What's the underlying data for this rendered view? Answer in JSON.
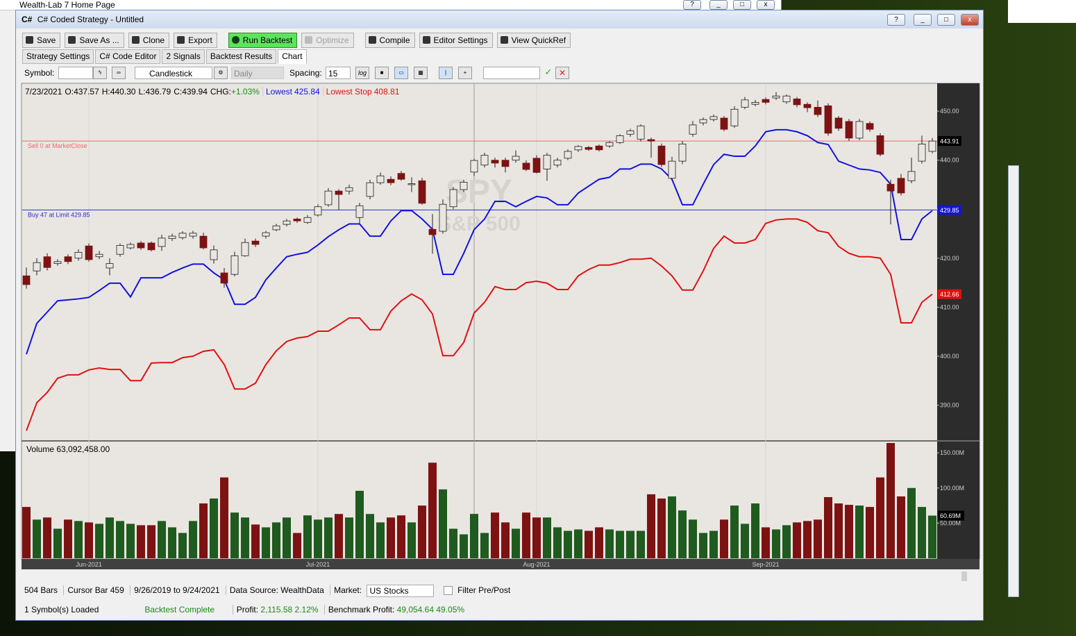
{
  "window": {
    "parent_title": "Wealth-Lab 7 Home Page",
    "icon": "C#",
    "title": "C# Coded Strategy - Untitled"
  },
  "toolbar": {
    "buttons": [
      "Save",
      "Save As ...",
      "Clone",
      "Export",
      "Run Backtest",
      "Optimize",
      "Compile",
      "Editor Settings",
      "View QuickRef"
    ]
  },
  "tabs": [
    "Strategy Settings",
    "C# Code Editor",
    "2 Signals",
    "Backtest Results",
    "Chart"
  ],
  "chart_toolbar": {
    "symbol_label": "Symbol:",
    "chart_style": "Candlestick",
    "scale": "Daily",
    "spacing_label": "Spacing:",
    "spacing": 15,
    "log_label": "log"
  },
  "readout": {
    "date": "7/23/2021",
    "items": [
      {
        "label": "O:",
        "value": "437.57"
      },
      {
        "label": "H:",
        "value": "440.30"
      },
      {
        "label": "L:",
        "value": "436.79"
      },
      {
        "label": "C:",
        "value": "439.94"
      },
      {
        "label": "CHG:",
        "value": "+1.03%"
      }
    ]
  },
  "chart_data": {
    "type": "candlestick",
    "watermark": {
      "symbol": "SPY",
      "name": "S&P 500"
    },
    "categories": [
      null,
      null,
      null,
      null,
      null,
      null,
      "Jun-2021",
      null,
      null,
      null,
      null,
      null,
      null,
      null,
      null,
      null,
      null,
      null,
      null,
      null,
      null,
      null,
      null,
      null,
      null,
      null,
      null,
      null,
      "Jul-2021",
      null,
      null,
      null,
      null,
      null,
      null,
      null,
      null,
      null,
      null,
      null,
      null,
      null,
      null,
      null,
      null,
      null,
      null,
      null,
      null,
      "Aug-2021",
      null,
      null,
      null,
      null,
      null,
      null,
      null,
      null,
      null,
      null,
      null,
      null,
      null,
      null,
      null,
      null,
      null,
      null,
      null,
      null,
      null,
      "Sep-2021",
      null,
      null,
      null,
      null,
      null,
      null,
      null,
      null,
      null,
      null,
      null,
      null,
      null,
      null,
      null,
      null
    ],
    "open": [
      416.4,
      417.4,
      420.3,
      418.9,
      420.3,
      420,
      422.5,
      420.3,
      418,
      420.8,
      422.1,
      423.1,
      423.1,
      422.4,
      424,
      424.2,
      424.5,
      424.5,
      419.7,
      417,
      416.7,
      420.5,
      423.5,
      424.5,
      425.8,
      426.9,
      428,
      427.3,
      428.8,
      430.9,
      433.7,
      433.7,
      428.3,
      432.6,
      435.4,
      436.1,
      437.3,
      435,
      435.8,
      425.9,
      425.5,
      430.5,
      434,
      437.57,
      439,
      440,
      440,
      440,
      439.4,
      440.4,
      438.2,
      439,
      440.4,
      442.1,
      442.6,
      442.9,
      442.9,
      443.6,
      445.3,
      444.3,
      444.2,
      442.9,
      436.3,
      439.8,
      445.3,
      447.6,
      448.3,
      448.6,
      447,
      450.8,
      451.4,
      452.4,
      452.7,
      451.9,
      452.5,
      451.4,
      450.8,
      451.1,
      448.6,
      447.9,
      444.5,
      447.5,
      445,
      435.1,
      436.3,
      435.8,
      439.8,
      441.8
    ],
    "high": [
      418.1,
      420,
      421,
      419.8,
      420.8,
      421.8,
      423,
      421.5,
      420,
      423,
      423.2,
      423.5,
      423.4,
      424.8,
      425,
      425.5,
      425.6,
      425.2,
      422.6,
      418,
      421.3,
      424,
      424,
      425.6,
      427,
      428,
      428.3,
      428.8,
      431,
      434.3,
      434.1,
      435,
      431.3,
      436,
      437.5,
      436.7,
      437.8,
      436.5,
      436.4,
      429,
      432,
      434.5,
      436,
      440.3,
      441.5,
      440.5,
      440.5,
      442,
      440,
      441,
      441.5,
      440.5,
      442.2,
      443.1,
      442.9,
      443.2,
      443.9,
      445.3,
      446.4,
      447.3,
      444.6,
      443.4,
      440.7,
      443.9,
      448,
      448.7,
      449.3,
      449,
      451,
      452.9,
      452.3,
      452.8,
      453.9,
      453.4,
      452.9,
      451.8,
      452.2,
      451.6,
      449,
      448.4,
      448.4,
      447.9,
      445.5,
      436,
      437.2,
      440.5,
      445,
      444.5
    ],
    "low": [
      413.8,
      416.5,
      417.5,
      418.5,
      418.8,
      419.5,
      419.3,
      419.8,
      416.5,
      420.3,
      421.8,
      421.7,
      421.4,
      421.5,
      423.5,
      423.8,
      424,
      421.8,
      418.9,
      414,
      416.3,
      420.3,
      422.3,
      424,
      425.5,
      426.5,
      427.2,
      427,
      428.5,
      430.5,
      429.8,
      433,
      427,
      432,
      435,
      434.9,
      435.8,
      433.5,
      430.9,
      420.9,
      425,
      430,
      433.5,
      436.79,
      438.5,
      438.5,
      437.5,
      439.5,
      437.8,
      437.3,
      435.8,
      438.5,
      440,
      441.7,
      441.9,
      441.8,
      442.5,
      443.3,
      444.8,
      443.8,
      440.5,
      438.6,
      435.8,
      439.2,
      444.8,
      447.1,
      447.9,
      445.9,
      446.6,
      450.4,
      451,
      451.4,
      452.3,
      451.5,
      450.8,
      449.8,
      448.8,
      445,
      446,
      443.9,
      444.1,
      445.8,
      440.8,
      426.9,
      432.8,
      435.3,
      439.3,
      441.4
    ],
    "close": [
      414.6,
      419.1,
      418.1,
      419.3,
      419.3,
      421.2,
      419.7,
      420.8,
      418.9,
      422.6,
      422.8,
      422.1,
      421.7,
      424.1,
      424.5,
      425.1,
      425.1,
      422.1,
      421.7,
      414.9,
      420.5,
      423.2,
      422.8,
      425.2,
      426.6,
      427.6,
      427.6,
      428.3,
      430.5,
      433.7,
      433,
      434.4,
      430.7,
      435.4,
      436.8,
      435.4,
      436.1,
      435.2,
      431.2,
      424.8,
      431,
      434,
      435.5,
      439.94,
      441,
      439.4,
      438.7,
      440.8,
      438.1,
      437.5,
      441,
      440,
      441.8,
      442.8,
      442.2,
      442.1,
      443.6,
      445,
      446,
      447,
      443.9,
      439.1,
      439.8,
      443.3,
      447.2,
      448.3,
      448.9,
      446.3,
      450.4,
      452.3,
      451.8,
      451.8,
      453.1,
      453.1,
      451.3,
      450.7,
      449.3,
      445.5,
      446.5,
      444.5,
      447.9,
      446.3,
      441.2,
      433.7,
      433.3,
      437.7,
      443.3,
      443.9
    ],
    "up_color": "#e9e6e2",
    "down_color": "#7d1212",
    "outline_color": "#1e1e1e",
    "ylim": [
      383,
      455.4
    ],
    "yticks": [
      {
        "value": 390,
        "label": "390.00"
      },
      {
        "value": 400,
        "label": "400.00"
      },
      {
        "value": 410,
        "label": "410.00"
      },
      {
        "value": 420,
        "label": "420.00"
      },
      {
        "value": 430,
        "label": "430.00"
      },
      {
        "value": 440,
        "label": "440.00"
      },
      {
        "value": 450,
        "label": "450.00"
      }
    ],
    "cursor_index": 43,
    "series": [
      {
        "name": "Lowest",
        "color": "#1111dd",
        "readout": "425.84",
        "axis_label": false,
        "values": [
          400.4,
          406.7,
          409,
          411.3,
          411.5,
          411.7,
          412,
          413.4,
          414.9,
          414.9,
          412.1,
          416,
          416,
          416,
          417.1,
          418,
          418.8,
          418.8,
          417,
          415.6,
          410.6,
          410.6,
          412,
          415.6,
          418,
          420.3,
          420.8,
          421.2,
          422.7,
          424.4,
          425.8,
          427,
          427,
          424.5,
          424.5,
          427.6,
          429.7,
          429.7,
          428,
          425.9,
          416.7,
          416.7,
          421,
          425.84,
          428,
          431.6,
          431.6,
          430.5,
          431.6,
          432.6,
          432.3,
          430.9,
          430.9,
          433.3,
          434.7,
          436.1,
          436.5,
          438.2,
          438.2,
          439.2,
          439.2,
          438.2,
          436.1,
          430.9,
          430.9,
          435.1,
          439.1,
          441.2,
          440.8,
          440.8,
          442.9,
          445.8,
          446.2,
          446.2,
          445.8,
          445,
          443.6,
          443.2,
          439.8,
          439,
          438.2,
          438,
          437.5,
          435.1,
          423.8,
          423.8,
          428,
          429.7
        ]
      },
      {
        "name": "Lowest Stop",
        "color": "#e01010",
        "readout": "408.81",
        "axis_label": true,
        "values": [
          384.8,
          390.5,
          392.6,
          395.5,
          396.2,
          396.2,
          397.2,
          397.6,
          397.3,
          397.3,
          395,
          395,
          398.6,
          398.7,
          398.7,
          399.7,
          400,
          401,
          401.3,
          398.3,
          393.3,
          393.3,
          394.5,
          398.3,
          401.1,
          403,
          403.7,
          404,
          405.1,
          405.1,
          406.4,
          407.8,
          407.8,
          405.4,
          405.4,
          409.2,
          411.3,
          412.7,
          411.5,
          408.6,
          400.1,
          400.1,
          402.8,
          408.81,
          411,
          414.2,
          413.6,
          413.6,
          415,
          415.3,
          414.9,
          413.6,
          413.6,
          416.4,
          417.7,
          418.6,
          418.6,
          419.1,
          419.8,
          419.8,
          420,
          418.4,
          416.4,
          413.5,
          413.5,
          417.4,
          422,
          424.5,
          423.1,
          423.1,
          423.8,
          427.1,
          427.8,
          428,
          428,
          427.3,
          425.6,
          425.2,
          422.4,
          421,
          420.3,
          420.3,
          420,
          416.7,
          406.8,
          406.8,
          411,
          412.66
        ]
      }
    ],
    "orders": [
      {
        "label": "Sell 0 at MarketClose",
        "value": 443.91,
        "color": "#e86a6a",
        "box_color": "#000000"
      },
      {
        "label": "Buy 47 at Limit 429.85",
        "value": 429.85,
        "color": "#2a2ae0",
        "box_color": "#1515d0"
      }
    ],
    "volume": {
      "label": "Volume",
      "readout": "63,092,458.00",
      "up_color": "#1f5a1f",
      "down_color": "#7d1212",
      "ylim": [
        0,
        166
      ],
      "yticks": [
        {
          "value": 50,
          "label": "50.00M"
        },
        {
          "value": 100,
          "label": "100.00M"
        },
        {
          "value": 150,
          "label": "150.00M"
        }
      ],
      "values": [
        73,
        55,
        58,
        42,
        55,
        53,
        51,
        49,
        58,
        53,
        49,
        47,
        47,
        53,
        44,
        36,
        53,
        78,
        85,
        115,
        65,
        58,
        48,
        44,
        51,
        58,
        36,
        61,
        55,
        58,
        63,
        58,
        96,
        63,
        51,
        58,
        61,
        51,
        75,
        136,
        98,
        42,
        34,
        63.09,
        36,
        65,
        51,
        42,
        65,
        58,
        58,
        44,
        39,
        41,
        39,
        44,
        41,
        39,
        39,
        39,
        91,
        85,
        88,
        68,
        55,
        36,
        39,
        55,
        75,
        49,
        78,
        44,
        41,
        47,
        51,
        53,
        55,
        87,
        78,
        76,
        75,
        73,
        115,
        164,
        88,
        100,
        73,
        60.69
      ],
      "value_labels": [
        null,
        null,
        null,
        null,
        null,
        null,
        null,
        null,
        null,
        null,
        null,
        null,
        null,
        null,
        null,
        null,
        null,
        null,
        null,
        null,
        null,
        null,
        null,
        null,
        null,
        null,
        null,
        null,
        null,
        null,
        null,
        null,
        null,
        null,
        null,
        null,
        null,
        null,
        null,
        null,
        null,
        null,
        null,
        null,
        null,
        null,
        null,
        null,
        null,
        null,
        null,
        null,
        null,
        null,
        null,
        null,
        null,
        null,
        null,
        null,
        null,
        null,
        null,
        null,
        null,
        null,
        null,
        null,
        null,
        null,
        null,
        null,
        null,
        null,
        null,
        null,
        null,
        null,
        null,
        null,
        null,
        null,
        null,
        null,
        null,
        null,
        null,
        "60.69M"
      ]
    }
  },
  "status": {
    "bars": "504 Bars",
    "cursor": "Cursor Bar 459",
    "range": "9/26/2019 to 9/24/2021",
    "source": "Data Source: WealthData",
    "market_label": "Market:",
    "market": "US Stocks",
    "filter": "Filter Pre/Post"
  },
  "footer": {
    "loaded": "1 Symbol(s) Loaded",
    "state": "Backtest Complete",
    "profit_label": "Profit:",
    "profit": "2,115.58",
    "profit_pct": "2.12%",
    "benchmark_label": "Benchmark Profit:",
    "benchmark": "49,054.64",
    "benchmark_pct": "49.05%"
  }
}
